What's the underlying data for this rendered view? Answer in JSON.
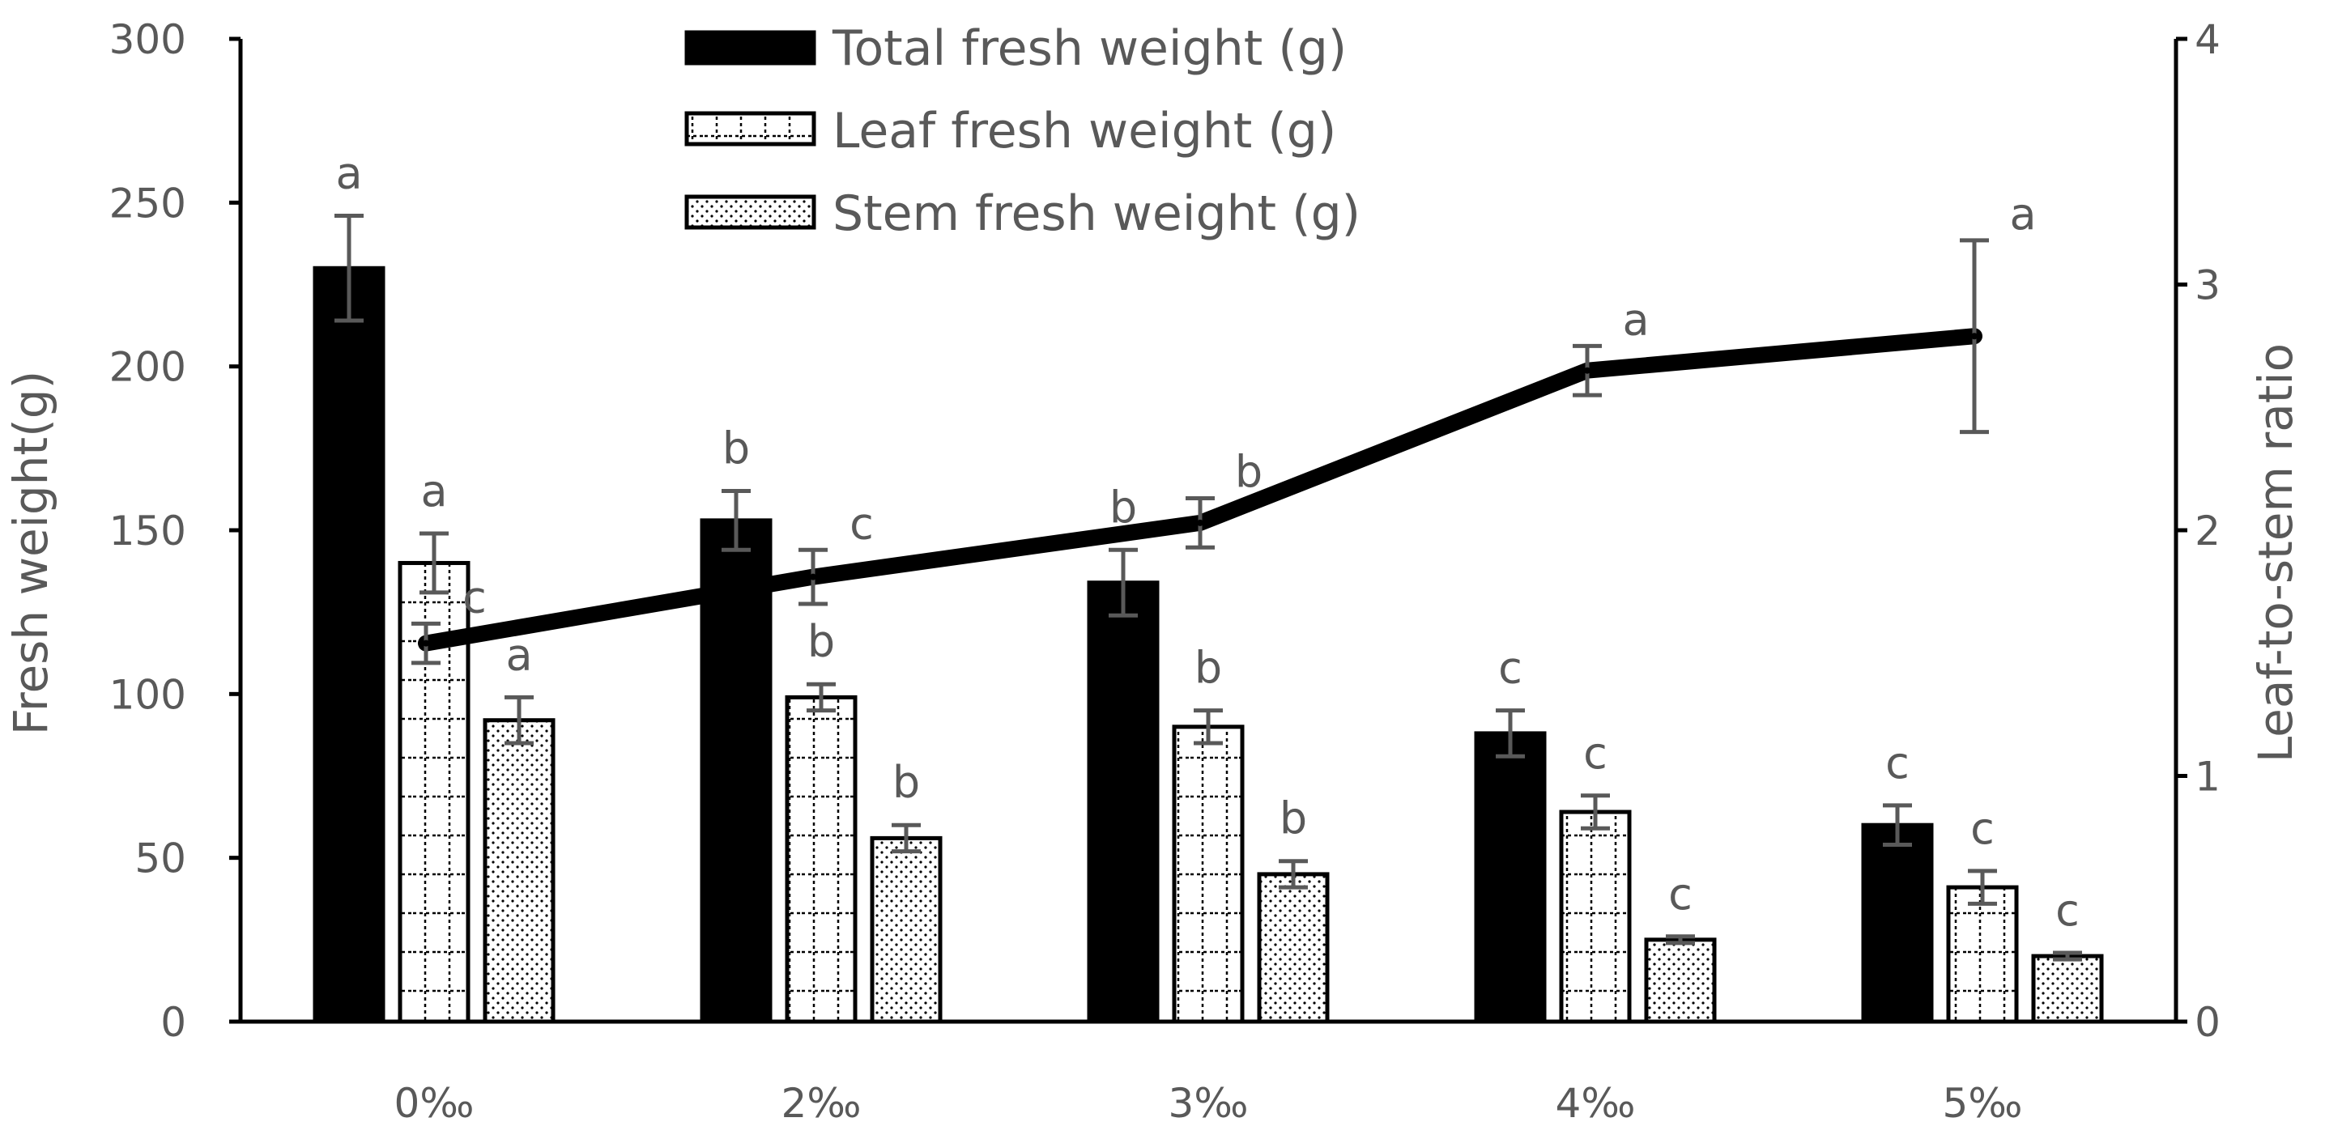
{
  "chart_data": {
    "type": "bar",
    "categories": [
      "0‰",
      "2‰",
      "3‰",
      "4‰",
      "5‰"
    ],
    "ylabel": "Fresh weight(g)",
    "y2label": "Leaf-to-stem ratio",
    "ylim": [
      0,
      300
    ],
    "y2lim": [
      0,
      4
    ],
    "yticks": [
      "0",
      "50",
      "100",
      "150",
      "200",
      "250",
      "300"
    ],
    "y2ticks": [
      "0",
      "1",
      "2",
      "3",
      "4"
    ],
    "legend_position": "top-center",
    "series": [
      {
        "name": "Total fresh weight (g)",
        "type": "bar",
        "axis": "left",
        "pattern": "solid-black",
        "values": [
          230,
          153,
          134,
          88,
          60
        ],
        "errors": [
          16,
          9,
          10,
          7,
          6
        ],
        "significance": [
          "a",
          "b",
          "b",
          "c",
          "c"
        ]
      },
      {
        "name": "Leaf fresh weight (g)",
        "type": "bar",
        "axis": "left",
        "pattern": "dotted-grid",
        "values": [
          140,
          99,
          90,
          64,
          41
        ],
        "errors": [
          9,
          4,
          5,
          5,
          5
        ],
        "significance": [
          "a",
          "b",
          "b",
          "c",
          "c"
        ]
      },
      {
        "name": "Stem fresh weight (g)",
        "type": "bar",
        "axis": "left",
        "pattern": "dotted-fill",
        "values": [
          92,
          56,
          45,
          25,
          20
        ],
        "errors": [
          7,
          4,
          4,
          1,
          1
        ],
        "significance": [
          "a",
          "b",
          "b",
          "c",
          "c"
        ]
      },
      {
        "name": "Leaf-to-stem ratio",
        "type": "line",
        "axis": "right",
        "values": [
          1.54,
          1.81,
          2.03,
          2.65,
          2.79
        ],
        "errors": [
          0.08,
          0.11,
          0.1,
          0.1,
          0.39
        ],
        "significance": [
          "c",
          "c",
          "b",
          "a",
          "a"
        ]
      }
    ]
  }
}
